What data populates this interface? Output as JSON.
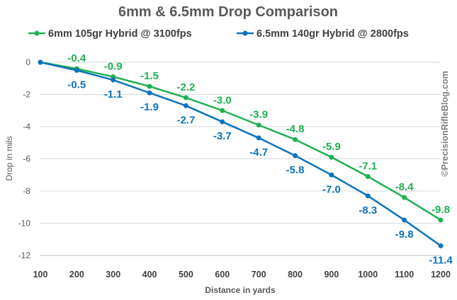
{
  "chart_data": {
    "type": "line",
    "title": "6mm & 6.5mm Drop Comparison",
    "xlabel": "Distance in yards",
    "ylabel": "Drop in mils",
    "x": [
      100,
      200,
      300,
      400,
      500,
      600,
      700,
      800,
      900,
      1000,
      1100,
      1200
    ],
    "xlim": [
      100,
      1200
    ],
    "ylim": [
      -12,
      0
    ],
    "yticks": [
      0,
      -2,
      -4,
      -6,
      -8,
      -10,
      -12
    ],
    "grid": true,
    "legend_position": "top",
    "series": [
      {
        "name": "6mm 105gr Hybrid @ 3100fps",
        "color": "#1fb051",
        "values": [
          0,
          -0.4,
          -0.9,
          -1.5,
          -2.2,
          -3.0,
          -3.9,
          -4.8,
          -5.9,
          -7.1,
          -8.4,
          -9.8
        ],
        "labels": [
          "",
          "-0.4",
          "-0.9",
          "-1.5",
          "-2.2",
          "-3.0",
          "-3.9",
          "-4.8",
          "-5.9",
          "-7.1",
          "-8.4",
          "-9.8"
        ],
        "label_position": "above"
      },
      {
        "name": "6.5mm 140gr Hybrid @ 2800fps",
        "color": "#0d73bc",
        "values": [
          0,
          -0.5,
          -1.1,
          -1.9,
          -2.7,
          -3.7,
          -4.7,
          -5.8,
          -7.0,
          -8.3,
          -9.8,
          -11.4
        ],
        "labels": [
          "",
          "-0.5",
          "-1.1",
          "-1.9",
          "-2.7",
          "-3.7",
          "-4.7",
          "-5.8",
          "-7.0",
          "-8.3",
          "-9.8",
          "-11.4"
        ],
        "label_position": "below"
      }
    ],
    "watermark": "©PrecisionRifleBlog.com"
  }
}
